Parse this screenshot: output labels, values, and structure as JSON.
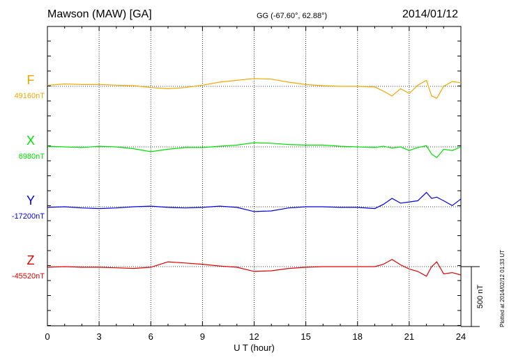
{
  "header": {
    "station": "Mawson (MAW)  [GA]",
    "coords": "GG (-67.60°,  62.88°)",
    "date": "2014/01/12"
  },
  "plotted_note": "Plotted at 2014/02/12 01:33 UT",
  "chart_data": {
    "type": "line",
    "xlabel": "U T (hour)",
    "xlim": [
      0,
      24
    ],
    "xticks": [
      0,
      3,
      6,
      9,
      12,
      15,
      18,
      21,
      24
    ],
    "scale_bar_label": "500 nT",
    "scale_bar_nT": 500,
    "grid": "dotted vertical lines every 3 hours",
    "series": [
      {
        "name": "F",
        "baseline_label": "49160nT",
        "baseline_nT": 49160,
        "color": "#f0a800",
        "x": [
          0,
          1,
          2,
          3,
          4,
          5,
          6,
          7,
          8,
          9,
          10,
          11,
          12,
          13,
          14,
          15,
          16,
          17,
          18,
          19,
          19.5,
          20,
          20.5,
          21,
          21.5,
          22,
          22.3,
          22.6,
          23,
          23.5,
          24
        ],
        "y": [
          49170,
          49180,
          49175,
          49175,
          49170,
          49165,
          49150,
          49140,
          49150,
          49170,
          49195,
          49210,
          49225,
          49220,
          49195,
          49175,
          49165,
          49160,
          49160,
          49155,
          49120,
          49080,
          49140,
          49100,
          49170,
          49210,
          49080,
          49060,
          49160,
          49200,
          49190
        ]
      },
      {
        "name": "X",
        "baseline_label": "6980nT",
        "baseline_nT": 6980,
        "color": "#00e000",
        "x": [
          0,
          1,
          2,
          3,
          4,
          5,
          6,
          7,
          8,
          9,
          10,
          11,
          12,
          13,
          14,
          15,
          16,
          17,
          18,
          19,
          19.5,
          20,
          20.5,
          21,
          21.5,
          22,
          22.3,
          22.6,
          23,
          23.5,
          24
        ],
        "y": [
          6985,
          6980,
          6975,
          6985,
          6980,
          6965,
          6940,
          6960,
          6975,
          6975,
          6985,
          6995,
          7015,
          7010,
          7000,
          6995,
          6995,
          6985,
          6980,
          6975,
          6985,
          6970,
          6980,
          6950,
          6975,
          6990,
          6920,
          6890,
          6960,
          6950,
          6980
        ]
      },
      {
        "name": "Y",
        "baseline_label": "-17200nT",
        "baseline_nT": -17200,
        "color": "#0000e0",
        "x": [
          0,
          1,
          2,
          3,
          4,
          5,
          6,
          7,
          8,
          9,
          10,
          11,
          12,
          13,
          14,
          15,
          16,
          17,
          18,
          19,
          19.5,
          20,
          20.5,
          21,
          21.5,
          22,
          22.3,
          22.6,
          23,
          23.5,
          24
        ],
        "y": [
          -17205,
          -17200,
          -17210,
          -17215,
          -17210,
          -17200,
          -17195,
          -17205,
          -17210,
          -17205,
          -17195,
          -17205,
          -17240,
          -17235,
          -17210,
          -17200,
          -17200,
          -17205,
          -17205,
          -17215,
          -17180,
          -17130,
          -17170,
          -17160,
          -17150,
          -17080,
          -17130,
          -17120,
          -17150,
          -17190,
          -17135
        ]
      },
      {
        "name": "Z",
        "baseline_label": "-45520nT",
        "baseline_nT": -45520,
        "color": "#e00000",
        "x": [
          0,
          1,
          2,
          3,
          4,
          5,
          6,
          7,
          8,
          9,
          10,
          11,
          12,
          13,
          14,
          15,
          16,
          17,
          18,
          19,
          19.5,
          20,
          20.5,
          21,
          21.5,
          22,
          22.3,
          22.6,
          23,
          23.5,
          24
        ],
        "y": [
          -45525,
          -45520,
          -45525,
          -45525,
          -45530,
          -45535,
          -45525,
          -45480,
          -45490,
          -45500,
          -45515,
          -45525,
          -45560,
          -45555,
          -45535,
          -45525,
          -45520,
          -45520,
          -45520,
          -45520,
          -45500,
          -45460,
          -45505,
          -45540,
          -45560,
          -45600,
          -45520,
          -45480,
          -45580,
          -45570,
          -45590
        ]
      }
    ]
  }
}
